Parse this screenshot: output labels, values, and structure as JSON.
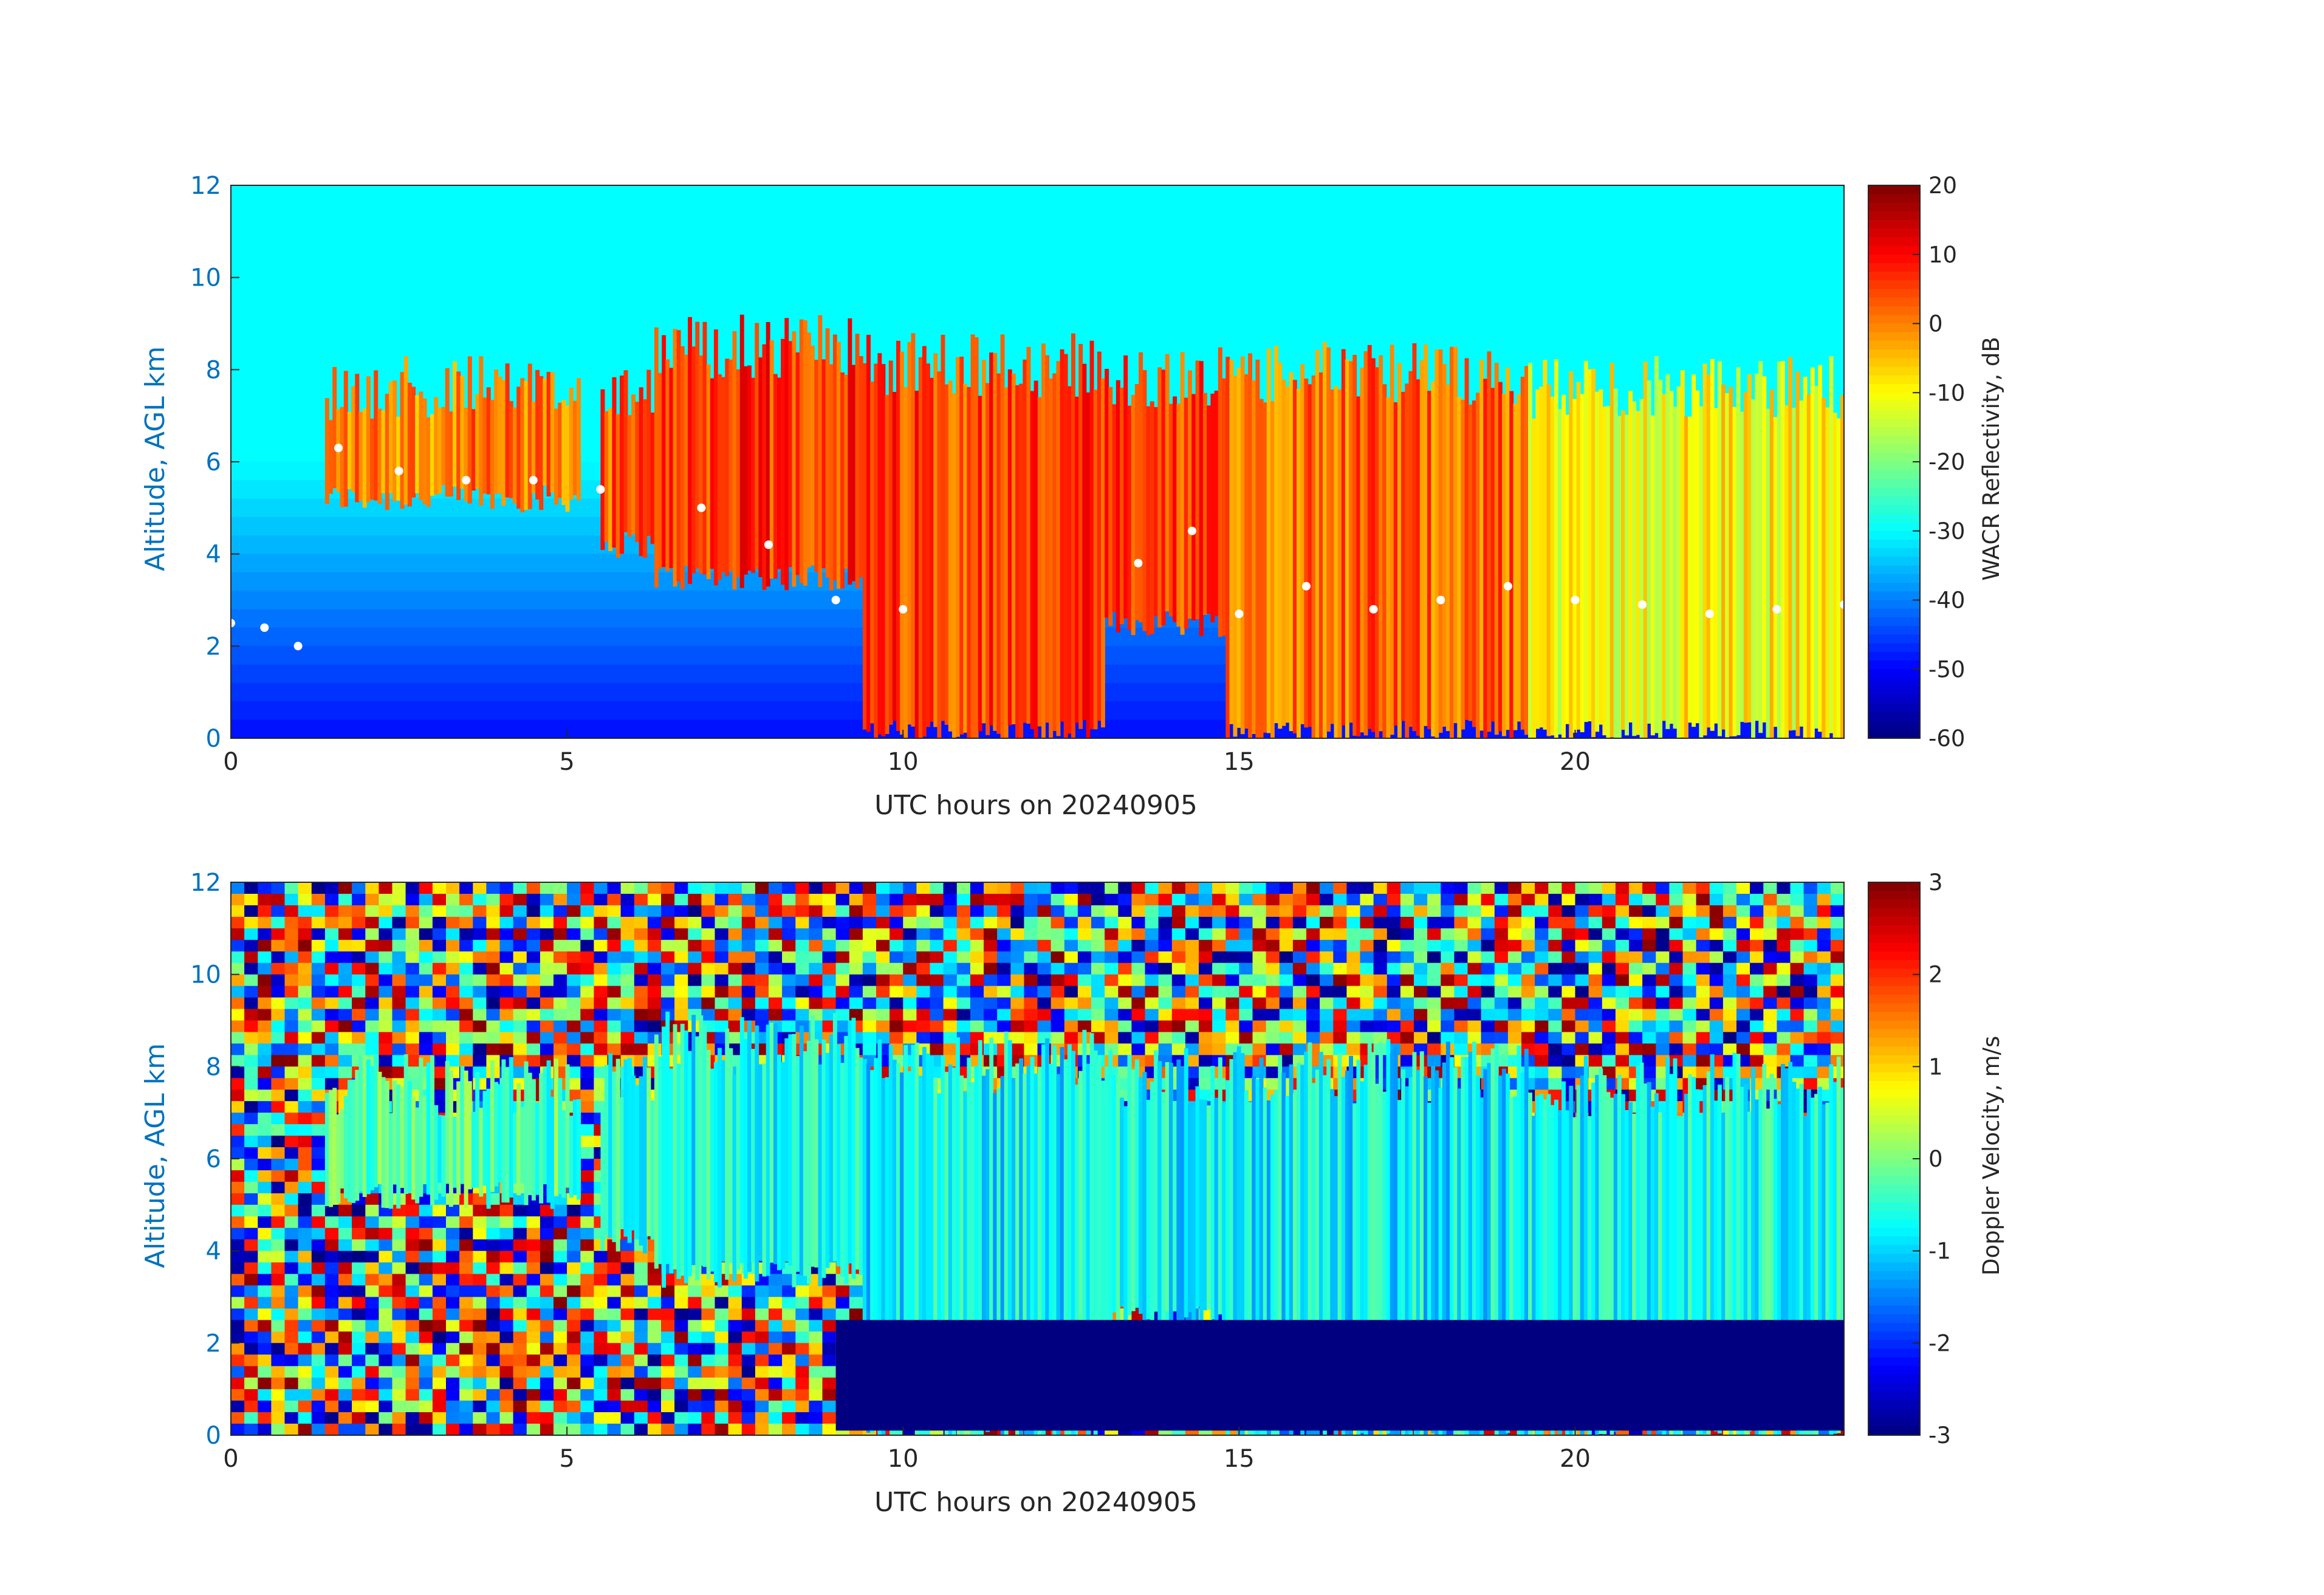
{
  "chart_data": [
    {
      "type": "heatmap",
      "xlabel": "UTC hours on 20240905",
      "ylabel": "Altitude, AGL km",
      "xlim": [
        0,
        24
      ],
      "ylim": [
        0,
        12
      ],
      "xticks": [
        "0",
        "5",
        "10",
        "15",
        "20"
      ],
      "yticks": [
        "0",
        "2",
        "4",
        "6",
        "8",
        "10",
        "12"
      ],
      "colorbar": {
        "label": "WACR Reflectivity, dB",
        "range": [
          -60,
          20
        ],
        "ticks": [
          "20",
          "10",
          "0",
          "-10",
          "-20",
          "-30",
          "-40",
          "-50",
          "-60"
        ],
        "colormap": "jet"
      },
      "background_value": -30,
      "cloud_segments": [
        {
          "x": [
            1.4,
            5.2
          ],
          "base": 5.2,
          "top": 8.3,
          "value": 0
        },
        {
          "x": [
            5.5,
            6.3
          ],
          "base": 4.2,
          "top": 8.4,
          "value": 3
        },
        {
          "x": [
            6.3,
            9.4
          ],
          "base": 3.5,
          "top": 9.2,
          "value": 6
        },
        {
          "x": [
            9.4,
            13.0
          ],
          "base": 0.1,
          "top": 8.8,
          "value": 5
        },
        {
          "x": [
            13.0,
            14.8
          ],
          "base": 2.5,
          "top": 8.5,
          "value": 4
        },
        {
          "x": [
            14.8,
            19.3
          ],
          "base": 0.1,
          "top": 8.6,
          "value": 2
        },
        {
          "x": [
            19.3,
            24.0
          ],
          "base": 0.1,
          "top": 8.3,
          "value": -10
        }
      ],
      "ceilometer_cloud_base": [
        {
          "x": 0.0,
          "y": 2.5
        },
        {
          "x": 0.5,
          "y": 2.4
        },
        {
          "x": 1.0,
          "y": 2.0
        },
        {
          "x": 1.6,
          "y": 6.3
        },
        {
          "x": 2.5,
          "y": 5.8
        },
        {
          "x": 3.5,
          "y": 5.6
        },
        {
          "x": 4.5,
          "y": 5.6
        },
        {
          "x": 5.5,
          "y": 5.4
        },
        {
          "x": 7.0,
          "y": 5.0
        },
        {
          "x": 8.0,
          "y": 4.2
        },
        {
          "x": 9.0,
          "y": 3.0
        },
        {
          "x": 10.0,
          "y": 2.8
        },
        {
          "x": 13.5,
          "y": 3.8
        },
        {
          "x": 14.3,
          "y": 4.5
        },
        {
          "x": 15.0,
          "y": 2.7
        },
        {
          "x": 16.0,
          "y": 3.3
        },
        {
          "x": 17.0,
          "y": 2.8
        },
        {
          "x": 18.0,
          "y": 3.0
        },
        {
          "x": 19.0,
          "y": 3.3
        },
        {
          "x": 20.0,
          "y": 3.0
        },
        {
          "x": 21.0,
          "y": 2.9
        },
        {
          "x": 22.0,
          "y": 2.7
        },
        {
          "x": 23.0,
          "y": 2.8
        },
        {
          "x": 24.0,
          "y": 2.9
        }
      ]
    },
    {
      "type": "heatmap",
      "xlabel": "UTC hours on 20240905",
      "ylabel": "Altitude, AGL km",
      "xlim": [
        0,
        24
      ],
      "ylim": [
        0,
        12
      ],
      "xticks": [
        "0",
        "5",
        "10",
        "15",
        "20"
      ],
      "yticks": [
        "0",
        "2",
        "4",
        "6",
        "8",
        "10",
        "12"
      ],
      "colorbar": {
        "label": "Doppler Velocity, m/s",
        "range": [
          -3,
          3
        ],
        "ticks": [
          "3",
          "2",
          "1",
          "0",
          "-1",
          "-2",
          "-3"
        ],
        "colormap": "jet"
      },
      "background": "noise",
      "cloud_segments": [
        {
          "x": [
            1.4,
            5.2
          ],
          "base": 5.2,
          "top": 8.3,
          "value": -0.3
        },
        {
          "x": [
            5.5,
            6.3
          ],
          "base": 4.2,
          "top": 8.4,
          "value": -0.5
        },
        {
          "x": [
            6.3,
            9.4
          ],
          "base": 3.5,
          "top": 9.2,
          "value": -0.7
        },
        {
          "x": [
            9.4,
            13.0
          ],
          "base": 0.1,
          "top": 8.8,
          "value": -0.8
        },
        {
          "x": [
            13.0,
            14.8
          ],
          "base": 2.5,
          "top": 8.5,
          "value": -0.8
        },
        {
          "x": [
            14.8,
            19.3
          ],
          "base": 0.1,
          "top": 8.6,
          "value": -0.8
        },
        {
          "x": [
            19.3,
            24.0
          ],
          "base": 0.1,
          "top": 8.3,
          "value": -0.7
        }
      ],
      "rain_layer": {
        "x": [
          9.0,
          24.0
        ],
        "base": 0.1,
        "top": 2.5,
        "value": -3
      }
    }
  ]
}
